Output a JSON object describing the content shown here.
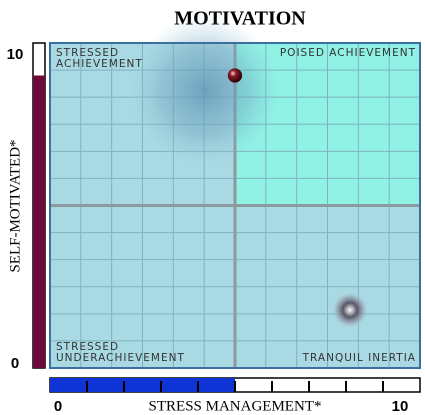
{
  "chart_data": {
    "type": "quadrant",
    "title": "MOTIVATION",
    "x_label": "STRESS MANAGEMENT*",
    "y_label": "SELF-MOTIVATED*",
    "xlim": [
      0,
      10
    ],
    "ylim": [
      0,
      10
    ],
    "xticks": [
      0,
      10
    ],
    "yticks": [
      0,
      10
    ],
    "x": [
      5
    ],
    "y": [
      9
    ],
    "quadrants": [
      {
        "lines": [
          "STRESSED",
          "ACHIEVEMENT"
        ],
        "color": "#a9d9e2"
      },
      {
        "lines": [
          "POISED ACHIEVEMENT"
        ],
        "color": "#8ff2e4"
      },
      {
        "lines": [
          "STRESSED",
          "UNDERACHIEVEMENT"
        ],
        "color": "#a9d9e2"
      },
      {
        "lines": [
          "TRANQUIL INERTIA"
        ],
        "color": "#a9d9e2"
      }
    ],
    "point_color": "#6b0f1a",
    "x_gauge_color": "#1033d6",
    "y_gauge_color": "#6e0a3a",
    "grid": true
  }
}
